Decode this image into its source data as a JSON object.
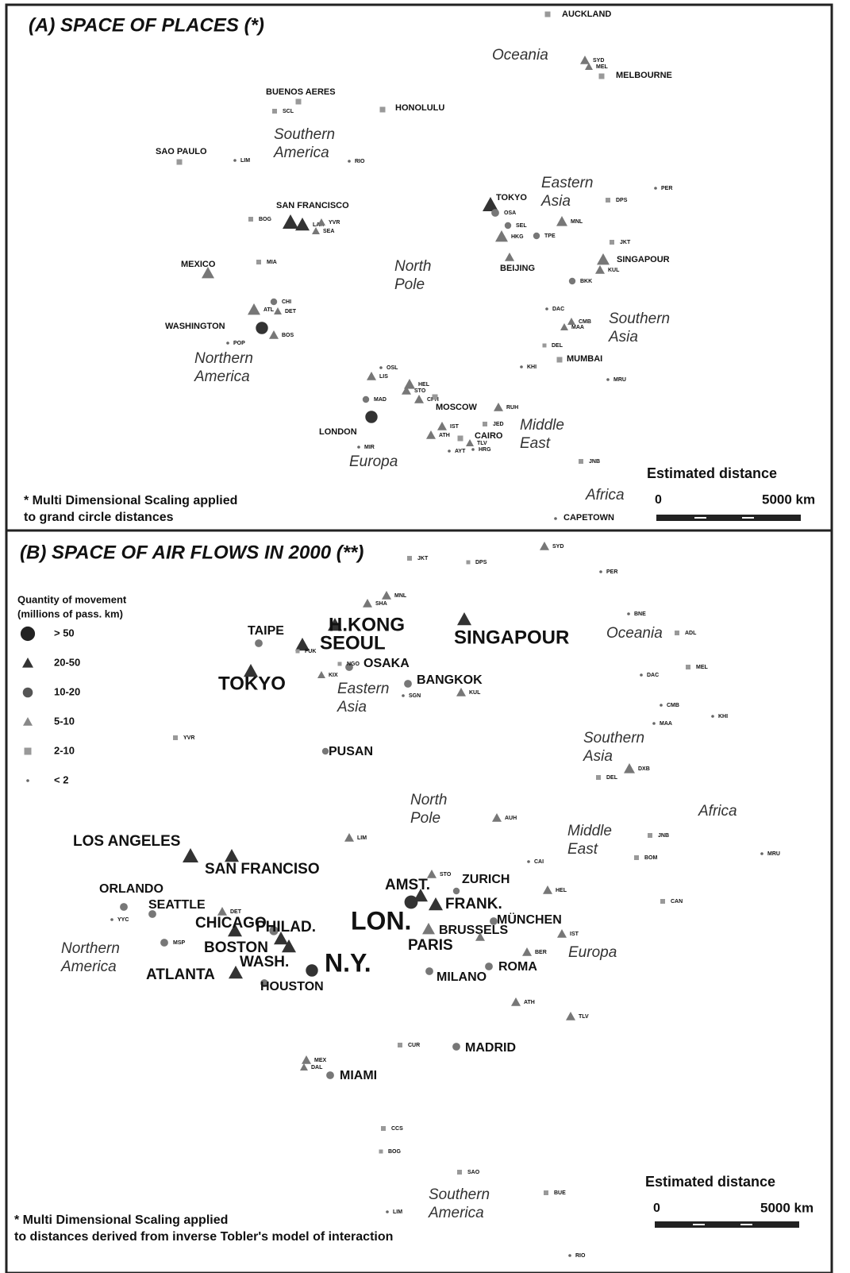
{
  "panels": [
    {
      "title": "(A) SPACE OF PLACES (*)",
      "note": [
        "* Multi Dimensional Scaling applied",
        "to grand circle distances"
      ],
      "scale": {
        "title": "Estimated distance",
        "start": "0",
        "end": "5000 km"
      },
      "regions": [
        [
          "Oceania"
        ],
        [
          "Southern",
          "America"
        ],
        [
          "Eastern",
          "Asia"
        ],
        [
          "North",
          "Pole"
        ],
        [
          "Southern",
          "Asia"
        ],
        [
          "Northern",
          "America"
        ],
        [
          "Middle",
          "East"
        ],
        [
          "Europa"
        ],
        [
          "Africa"
        ]
      ],
      "cities": [
        "AUCKLAND",
        "SYD",
        "MEL",
        "MELBOURNE",
        "BUENOS AERES",
        "SCL",
        "HONOLULU",
        "SAO PAULO",
        "LIM",
        "RIO",
        "SAN FRANCISCO",
        "BOG",
        "LAX",
        "YVR",
        "SEA",
        "MEXICO",
        "MIA",
        "CHI",
        "DET",
        "ATL",
        "WASHINGTON",
        "BOS",
        "POP",
        "TOKYO",
        "OSA",
        "MNL",
        "SEL",
        "HKG",
        "TPE",
        "DPS",
        "PER",
        "JKT",
        "SINGAPOUR",
        "KUL",
        "BEIJING",
        "BKK",
        "DAC",
        "CMB",
        "MAA",
        "DEL",
        "KHI",
        "MUMBAI",
        "MRU",
        "OSL",
        "LIS",
        "HEL",
        "STO",
        "MAD",
        "CPH",
        "MOSCOW",
        "LONDON",
        "RUH",
        "JED",
        "IST",
        "ATH",
        "CAIRO",
        "TLV",
        "MIR",
        "AYT",
        "HRG",
        "JNB",
        "CAPETOWN"
      ]
    },
    {
      "title": "(B) SPACE OF AIR FLOWS IN 2000 (**)",
      "note": [
        "* Multi Dimensional Scaling applied",
        "to distances derived from inverse Tobler's model of interaction"
      ],
      "scale": {
        "title": "Estimated distance",
        "start": "0",
        "end": "5000 km"
      },
      "legend": {
        "title": [
          "Quantity of movement",
          "(millions of pass. km)"
        ],
        "items": [
          "> 50",
          "20-50",
          "10-20",
          "5-10",
          "2-10",
          "< 2"
        ]
      },
      "regions": [
        [
          "Oceania"
        ],
        [
          "Eastern",
          "Asia"
        ],
        [
          "Southern",
          "Asia"
        ],
        [
          "North",
          "Pole"
        ],
        [
          "Africa"
        ],
        [
          "Middle",
          "East"
        ],
        [
          "Northern",
          "America"
        ],
        [
          "Europa"
        ],
        [
          "Southern",
          "America"
        ]
      ],
      "cities": [
        "JKT",
        "DPS",
        "SYD",
        "PER",
        "MNL",
        "SHA",
        "H.KONG",
        "TAIPE",
        "SEOUL",
        "SINGAPOUR",
        "FUK",
        "OSAKA",
        "NGO",
        "TOKYO",
        "KIX",
        "BANGKOK",
        "SGN",
        "KUL",
        "BNE",
        "ADL",
        "MEL",
        "DAC",
        "CMB",
        "MAA",
        "KHI",
        "YVR",
        "PUSAN",
        "DXB",
        "DEL",
        "AUH",
        "JNB",
        "LIM",
        "LOS ANGELES",
        "SAN FRANCISO",
        "BOM",
        "CAI",
        "MRU",
        "AMST.",
        "STO",
        "ZURICH",
        "ORLANDO",
        "HEL",
        "FRANK.",
        "SEATTLE",
        "CAN",
        "YYC",
        "DET",
        "CHICAGO",
        "PHILAD.",
        "LON.",
        "MÜNCHEN",
        "BRUSSELS",
        "IST",
        "MSP",
        "BOSTON",
        "PARIS",
        "BER",
        "WASH.",
        "N.Y.",
        "ROMA",
        "ATLANTA",
        "MILANO",
        "HOUSTON",
        "ATH",
        "TLV",
        "CUR",
        "MADRID",
        "MEX",
        "DAL",
        "MIAMI",
        "CCS",
        "BOG",
        "SAO",
        "BUE",
        "LIM",
        "RIO"
      ]
    }
  ]
}
